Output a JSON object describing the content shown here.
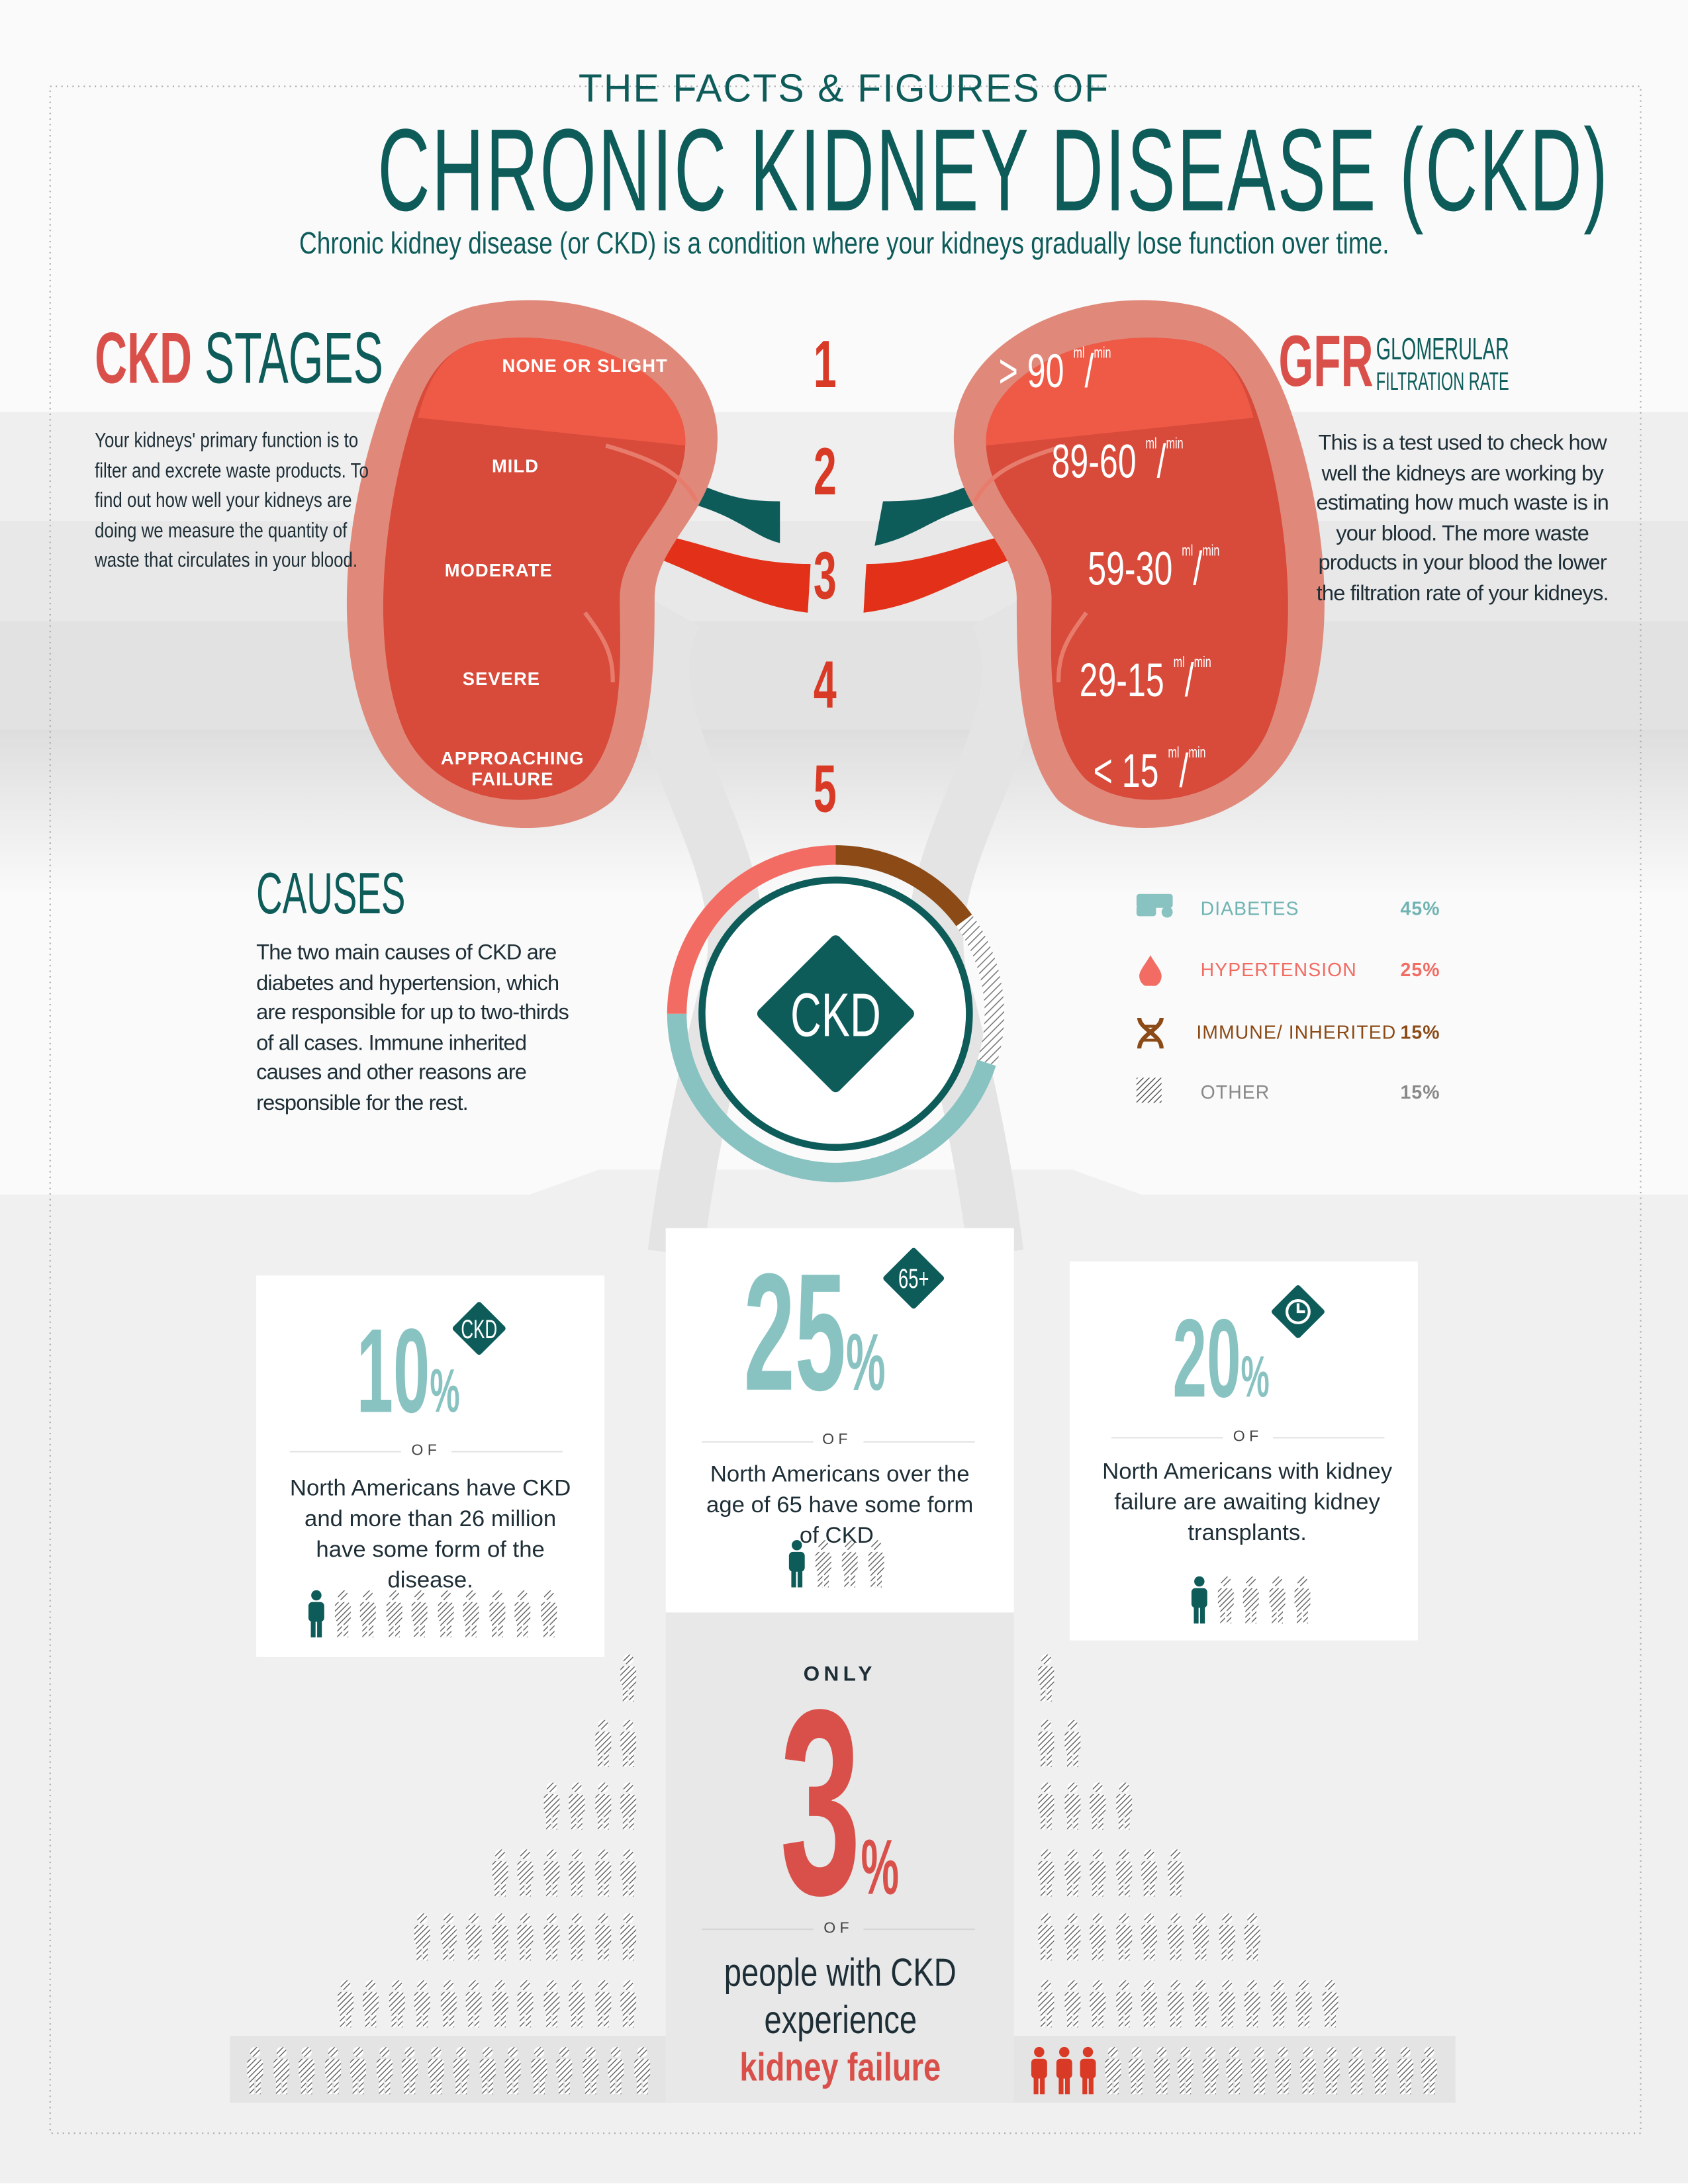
{
  "header": {
    "kicker": "THE FACTS & FIGURES OF",
    "title": "CHRONIC KIDNEY DISEASE (CKD)",
    "subtitle": "Chronic kidney disease (or CKD) is a condition where your kidneys gradually lose function over time."
  },
  "stages": {
    "title_a": "CKD",
    "title_b": "STAGES",
    "text": "Your kidneys' primary function is to filter and excrete waste products. To find out how well your kidneys are doing we measure the quantity of waste that circulates in your blood.",
    "items": [
      {
        "num": "1",
        "label": "NONE OR SLIGHT",
        "gfr": "> 90",
        "unit_top": "ml",
        "unit_bottom": "min"
      },
      {
        "num": "2",
        "label": "MILD",
        "gfr": "89-60",
        "unit_top": "ml",
        "unit_bottom": "min"
      },
      {
        "num": "3",
        "label": "MODERATE",
        "gfr": "59-30",
        "unit_top": "ml",
        "unit_bottom": "min"
      },
      {
        "num": "4",
        "label": "SEVERE",
        "gfr": "29-15",
        "unit_top": "ml",
        "unit_bottom": "min"
      },
      {
        "num": "5",
        "label": "APPROACHING FAILURE",
        "gfr": "< 15",
        "unit_top": "ml",
        "unit_bottom": "min"
      }
    ]
  },
  "gfr": {
    "abbr": "GFR",
    "line1": "GLOMERULAR",
    "line2": "FILTRATION RATE",
    "text": "This is a test used to check how well the kidneys are working by estimating how much waste is in your blood. The more waste products in your blood the lower the filtration rate of your kidneys."
  },
  "causes": {
    "title": "CAUSES",
    "text": "The two main causes of CKD are diabetes and hypertension, which are responsible for up to two-thirds of all cases. Immune inherited causes and other reasons are responsible for the rest.",
    "center_label": "CKD"
  },
  "chart_data": {
    "type": "pie",
    "donut": true,
    "categories": [
      "DIABETES",
      "HYPERTENSION",
      "IMMUNE/ INHERITED",
      "OTHER"
    ],
    "values": [
      45,
      25,
      15,
      15
    ],
    "labels": [
      "45%",
      "25%",
      "15%",
      "15%"
    ],
    "colors": [
      "#88c3c2",
      "#f26c63",
      "#8b4a16",
      "#9a9a9a"
    ],
    "icons": [
      "finger-prick-icon",
      "blood-drop-icon",
      "dna-icon",
      "hatched-square-icon"
    ],
    "legend": "right"
  },
  "stats": [
    {
      "value": "10",
      "unit": "%",
      "badge": "CKD",
      "of": "OF",
      "text": "North Americans have CKD and more than 26 million have some form of the disease."
    },
    {
      "value": "25",
      "unit": "%",
      "badge": "65+",
      "of": "OF",
      "text": "North Americans over the age of 65 have some form of CKD."
    },
    {
      "value": "20",
      "unit": "%",
      "badge": "clock-icon",
      "of": "OF",
      "text": "North Americans with kidney failure are awaiting kidney transplants."
    }
  ],
  "failure": {
    "only": "ONLY",
    "value": "3",
    "unit": "%",
    "of": "OF",
    "line1": "people with CKD",
    "line2": "experience",
    "line3": "kidney failure"
  },
  "colors": {
    "dark_teal": "#0d5c5a",
    "light_teal": "#88c3c2",
    "red": "#d9504a",
    "coral": "#f26c63",
    "brown": "#8b4a16"
  }
}
